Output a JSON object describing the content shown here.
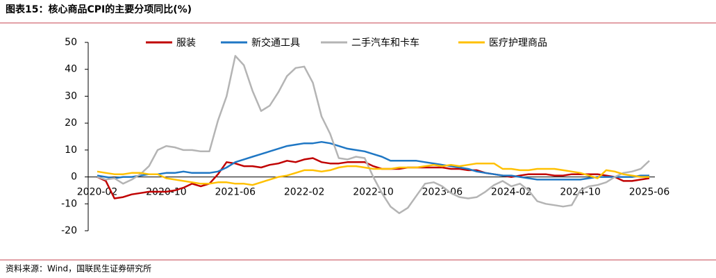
{
  "title": "图表15：核心商品CPI的主要分项同比(%)",
  "source": "资料来源：Wind，国联民生证券研究所",
  "chart_data": {
    "type": "line",
    "categories": [
      "2020-02",
      null,
      null,
      null,
      null,
      null,
      null,
      null,
      "2020-10",
      null,
      null,
      null,
      null,
      null,
      null,
      null,
      "2021-06",
      null,
      null,
      null,
      null,
      null,
      null,
      null,
      "2022-02",
      null,
      null,
      null,
      null,
      null,
      null,
      null,
      "2022-10",
      null,
      null,
      null,
      null,
      null,
      null,
      null,
      "2023-06",
      null,
      null,
      null,
      null,
      null,
      null,
      null,
      "2024-02",
      null,
      null,
      null,
      null,
      null,
      null,
      null,
      "2024-10",
      null,
      null,
      null,
      null,
      null,
      null,
      null,
      "2025-06"
    ],
    "ylim": [
      -20,
      50
    ],
    "yticks": [
      -20,
      -10,
      0,
      10,
      20,
      30,
      40,
      50
    ],
    "legend": "top",
    "series": [
      {
        "name": "服装",
        "color": "#c00000",
        "values": [
          0,
          -1.5,
          -8,
          -7.5,
          -6.5,
          -6,
          -5.5,
          -5.5,
          -5.5,
          -5,
          -4,
          -2.5,
          -3.5,
          -2.5,
          1,
          5.5,
          5,
          4,
          4,
          3.5,
          4.5,
          5,
          6,
          5.5,
          6.5,
          7,
          5.5,
          5,
          5,
          5.5,
          5.5,
          5.5,
          4,
          3,
          3,
          3,
          3.5,
          3.5,
          3.5,
          3.5,
          3.5,
          3,
          3,
          2.5,
          2.5,
          1.5,
          1,
          0.5,
          0,
          0.5,
          1,
          1,
          1,
          0.5,
          0.5,
          1,
          1,
          1,
          1,
          0.5,
          0,
          -1.5,
          -1.5,
          -1,
          -0.5
        ]
      },
      {
        "name": "新交通工具",
        "color": "#1f77c4",
        "values": [
          0.5,
          0,
          -0.5,
          0,
          0,
          0.5,
          1,
          1,
          1.5,
          1.5,
          2,
          1.5,
          1.5,
          1.5,
          2,
          3.5,
          5.5,
          6.5,
          7.5,
          8.5,
          9.5,
          10.5,
          11.5,
          12,
          12.5,
          12.5,
          13,
          12.5,
          11.5,
          10.5,
          10,
          9.5,
          8.5,
          7.5,
          6,
          6,
          6,
          6,
          5.5,
          5,
          4.5,
          4,
          3.5,
          3,
          2,
          1.5,
          1,
          0.5,
          0.5,
          0,
          -0.5,
          -1,
          -1,
          -1,
          -1,
          -1,
          -1,
          -0.5,
          0,
          0,
          0,
          0,
          0,
          0.5,
          0.5
        ]
      },
      {
        "name": "二手汽车和卡车",
        "color": "#b4b4b4",
        "values": [
          0,
          -1,
          -0.5,
          -2.5,
          -1,
          1,
          4,
          10,
          11.5,
          11,
          10,
          10,
          9.5,
          9.5,
          21,
          30,
          45,
          41.5,
          32,
          24.5,
          26.5,
          31.5,
          37.5,
          40.5,
          41,
          35,
          22.5,
          16,
          7,
          6.5,
          7.5,
          7,
          0,
          -6,
          -11,
          -13.5,
          -11.5,
          -7,
          -2.5,
          -2,
          -3.5,
          -6,
          -7.5,
          -8,
          -7.5,
          -5.5,
          -3,
          -1.5,
          -3.5,
          -2.5,
          -5,
          -9,
          -10,
          -10.5,
          -11,
          -10.5,
          -5,
          -3.5,
          -3,
          -2,
          0,
          1.5,
          2,
          3,
          6
        ]
      },
      {
        "name": "医疗护理商品",
        "color": "#ffc000",
        "values": [
          2,
          1.5,
          1,
          1,
          1.5,
          1.5,
          1,
          1,
          -0.5,
          -1,
          -1.5,
          -2,
          -2.5,
          -2.5,
          -2,
          -2,
          -2.5,
          -2.5,
          -3,
          -2,
          -1,
          0,
          0.5,
          1.5,
          2.5,
          2.5,
          2,
          2.5,
          3.5,
          4,
          4,
          3.5,
          3,
          3,
          3,
          3.5,
          3.5,
          3.5,
          4,
          4.5,
          4,
          4.5,
          4,
          4.5,
          5,
          5,
          5,
          3,
          3,
          2.5,
          2.5,
          3,
          3,
          3,
          2.5,
          2,
          1.5,
          0.5,
          -0.5,
          2.5,
          2,
          1,
          0.5,
          0,
          0
        ]
      }
    ]
  }
}
